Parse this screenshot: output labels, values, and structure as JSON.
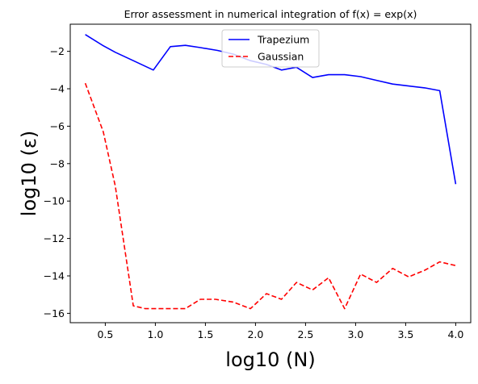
{
  "chart_data": {
    "type": "line",
    "title": "Error assessment in numerical integration of f(x) = exp(x)",
    "xlabel": "log10 (N)",
    "ylabel": "log10 (ε)",
    "xlim": [
      0.15,
      4.15
    ],
    "ylim": [
      -16.5,
      -0.55
    ],
    "xticks": [
      0.5,
      1.0,
      1.5,
      2.0,
      2.5,
      3.0,
      3.5,
      4.0
    ],
    "xtick_labels": [
      "0.5",
      "1.0",
      "1.5",
      "2.0",
      "2.5",
      "3.0",
      "3.5",
      "4.0"
    ],
    "yticks": [
      -2,
      -4,
      -6,
      -8,
      -10,
      -12,
      -14,
      -16
    ],
    "ytick_labels": [
      "−2",
      "−4",
      "−6",
      "−8",
      "−10",
      "−12",
      "−14",
      "−16"
    ],
    "grid": false,
    "legend_position": "top-center",
    "series": [
      {
        "name": "Trapezium",
        "color": "#0000ff",
        "style": "solid",
        "x": [
          0.3,
          0.48,
          0.6,
          0.78,
          0.98,
          1.15,
          1.3,
          1.45,
          1.62,
          1.78,
          1.95,
          2.11,
          2.26,
          2.41,
          2.57,
          2.73,
          2.89,
          3.05,
          3.21,
          3.37,
          3.53,
          3.69,
          3.84,
          4.0
        ],
        "y": [
          -1.1,
          -1.7,
          -2.05,
          -2.5,
          -3.0,
          -1.75,
          -1.68,
          -1.8,
          -1.95,
          -2.15,
          -2.5,
          -2.7,
          -3.0,
          -2.85,
          -3.4,
          -3.25,
          -3.25,
          -3.35,
          -3.55,
          -3.75,
          -3.85,
          -3.95,
          -4.1,
          -9.1
        ]
      },
      {
        "name": "Gaussian",
        "color": "#ff0000",
        "style": "dashed",
        "x": [
          0.3,
          0.48,
          0.6,
          0.78,
          0.9,
          1.0,
          1.15,
          1.3,
          1.45,
          1.6,
          1.78,
          1.95,
          2.11,
          2.26,
          2.41,
          2.57,
          2.73,
          2.89,
          3.05,
          3.21,
          3.37,
          3.53,
          3.69,
          3.84,
          4.0
        ],
        "y": [
          -3.7,
          -6.3,
          -9.2,
          -15.6,
          -15.75,
          -15.75,
          -15.75,
          -15.75,
          -15.25,
          -15.25,
          -15.4,
          -15.75,
          -14.95,
          -15.25,
          -14.35,
          -14.75,
          -14.1,
          -15.75,
          -13.9,
          -14.35,
          -13.6,
          -14.05,
          -13.7,
          -13.25,
          -13.45
        ]
      }
    ]
  }
}
